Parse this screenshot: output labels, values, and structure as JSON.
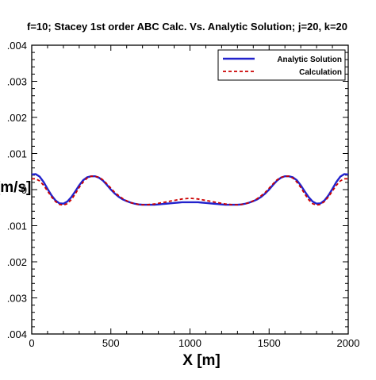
{
  "chart_data": {
    "type": "line",
    "title": "f=10; Stacey 1st order ABC Calc. Vs. Analytic Solution; j=20, k=20",
    "xlabel": "X [m]",
    "ylabel": "V [m/s]",
    "xlim": [
      0,
      2000
    ],
    "ylim": [
      -0.004,
      0.004
    ],
    "x_ticks": [
      "0",
      "500",
      "1000",
      "1500",
      "2000"
    ],
    "x_tick_values": [
      0,
      500,
      1000,
      1500,
      2000
    ],
    "y_ticks": [
      ".004",
      ".003",
      ".002",
      ".001",
      "0",
      ".001",
      ".002",
      ".003",
      ".004"
    ],
    "y_tick_values": [
      0.004,
      0.003,
      0.002,
      0.001,
      0,
      -0.001,
      -0.002,
      -0.003,
      -0.004
    ],
    "grid": false,
    "legend_position": "top-right",
    "series": [
      {
        "name": "Analytic Solution",
        "color": "#2222cc",
        "style": "solid",
        "x": [
          0,
          25,
          50,
          75,
          100,
          125,
          150,
          175,
          200,
          225,
          250,
          275,
          300,
          325,
          350,
          375,
          400,
          425,
          450,
          475,
          500,
          525,
          550,
          575,
          600,
          625,
          650,
          675,
          700,
          725,
          750,
          775,
          800,
          825,
          850,
          875,
          900,
          925,
          950,
          975,
          1000,
          1025,
          1050,
          1075,
          1100,
          1125,
          1150,
          1175,
          1200,
          1225,
          1250,
          1275,
          1300,
          1325,
          1350,
          1375,
          1400,
          1425,
          1450,
          1475,
          1500,
          1525,
          1550,
          1575,
          1600,
          1625,
          1650,
          1675,
          1700,
          1725,
          1750,
          1775,
          1800,
          1825,
          1850,
          1875,
          1900,
          1925,
          1950,
          1975,
          2000
        ],
        "y": [
          0.00042,
          0.00043,
          0.00036,
          0.00021,
          2e-05,
          -0.00016,
          -0.0003,
          -0.00038,
          -0.00039,
          -0.00033,
          -0.00021,
          -5e-05,
          0.00012,
          0.00026,
          0.00034,
          0.00037,
          0.00037,
          0.00033,
          0.00025,
          0.00013,
          0.0,
          -0.00011,
          -0.0002,
          -0.00027,
          -0.00032,
          -0.00036,
          -0.00039,
          -0.00041,
          -0.00042,
          -0.00042,
          -0.00042,
          -0.00042,
          -0.00041,
          -0.0004,
          -0.00039,
          -0.00038,
          -0.00037,
          -0.00036,
          -0.00035,
          -0.00035,
          -0.00035,
          -0.00035,
          -0.00035,
          -0.00036,
          -0.00037,
          -0.00038,
          -0.00039,
          -0.0004,
          -0.00041,
          -0.00042,
          -0.00042,
          -0.00042,
          -0.00042,
          -0.00041,
          -0.00039,
          -0.00036,
          -0.00032,
          -0.00027,
          -0.0002,
          -0.00011,
          0.0,
          0.00013,
          0.00025,
          0.00033,
          0.00037,
          0.00037,
          0.00034,
          0.00026,
          0.00012,
          -5e-05,
          -0.00021,
          -0.00033,
          -0.00039,
          -0.00038,
          -0.0003,
          -0.00016,
          2e-05,
          0.00021,
          0.00036,
          0.00043,
          0.00042
        ]
      },
      {
        "name": "Calculation",
        "color": "#cc0000",
        "style": "dashed",
        "x": [
          0,
          25,
          50,
          75,
          100,
          125,
          150,
          175,
          200,
          225,
          250,
          275,
          300,
          325,
          350,
          375,
          400,
          425,
          450,
          475,
          500,
          525,
          550,
          575,
          600,
          625,
          650,
          675,
          700,
          725,
          750,
          775,
          800,
          825,
          850,
          875,
          900,
          925,
          950,
          975,
          1000,
          1025,
          1050,
          1075,
          1100,
          1125,
          1150,
          1175,
          1200,
          1225,
          1250,
          1275,
          1300,
          1325,
          1350,
          1375,
          1400,
          1425,
          1450,
          1475,
          1500,
          1525,
          1550,
          1575,
          1600,
          1625,
          1650,
          1675,
          1700,
          1725,
          1750,
          1775,
          1800,
          1825,
          1850,
          1875,
          1900,
          1925,
          1950,
          1975,
          2000
        ],
        "y": [
          0.0003,
          0.0003,
          0.00024,
          0.00012,
          -4e-05,
          -0.0002,
          -0.00033,
          -0.00041,
          -0.00043,
          -0.00039,
          -0.00028,
          -0.00012,
          6e-05,
          0.00021,
          0.00032,
          0.00037,
          0.00037,
          0.00034,
          0.00027,
          0.00016,
          4e-05,
          -8e-05,
          -0.00017,
          -0.00025,
          -0.00031,
          -0.00036,
          -0.00039,
          -0.00041,
          -0.00042,
          -0.00042,
          -0.00041,
          -0.0004,
          -0.00038,
          -0.00036,
          -0.00034,
          -0.00032,
          -0.0003,
          -0.00028,
          -0.00026,
          -0.00025,
          -0.00024,
          -0.00025,
          -0.00026,
          -0.00028,
          -0.0003,
          -0.00032,
          -0.00034,
          -0.00036,
          -0.00038,
          -0.0004,
          -0.00041,
          -0.00042,
          -0.00042,
          -0.00041,
          -0.00039,
          -0.00036,
          -0.00031,
          -0.00025,
          -0.00017,
          -8e-05,
          4e-05,
          0.00016,
          0.00027,
          0.00034,
          0.00037,
          0.00037,
          0.00032,
          0.00021,
          6e-05,
          -0.00012,
          -0.00028,
          -0.00039,
          -0.00043,
          -0.00041,
          -0.00033,
          -0.0002,
          -4e-05,
          0.00012,
          0.00024,
          0.0003,
          0.0003
        ]
      }
    ]
  }
}
